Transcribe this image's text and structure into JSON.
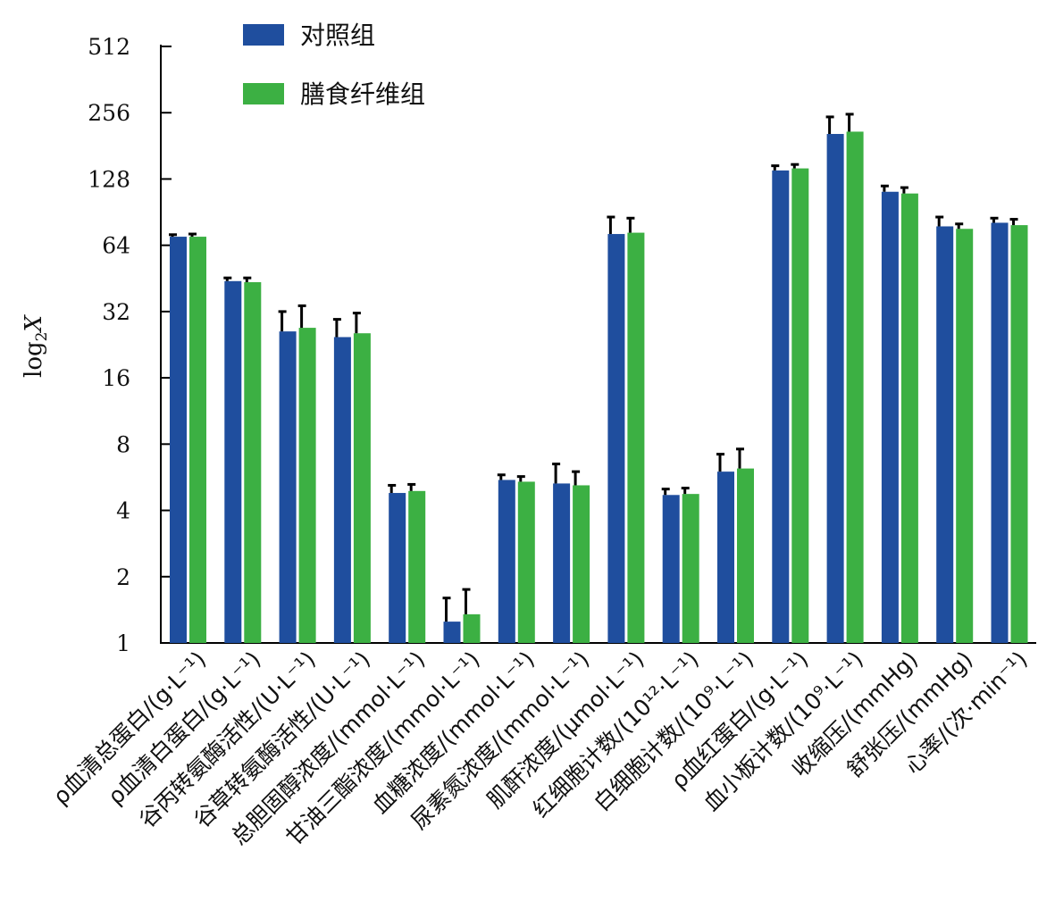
{
  "chart_data": {
    "type": "bar",
    "ylabel": "log",
    "ylabel_sub": "2",
    "ylabel_var": "X",
    "yscale": "log2",
    "ylim": [
      1,
      512
    ],
    "yticks": [
      1,
      2,
      4,
      8,
      16,
      32,
      64,
      128,
      256,
      512
    ],
    "grid": false,
    "legend_position": "top-left",
    "categories": [
      "ρ血清总蛋白/(g·L⁻¹)",
      "ρ血清白蛋白/(g·L⁻¹)",
      "谷丙转氨酶活性/(U·L⁻¹)",
      "谷草转氨酶活性/(U·L⁻¹)",
      "总胆固醇浓度/(mmol·L⁻¹)",
      "甘油三酯浓度/(mmol·L⁻¹)",
      "血糖浓度/(mmol·L⁻¹)",
      "尿素氮浓度/(mmol·L⁻¹)",
      "肌酐浓度/(μmol·L⁻¹)",
      "红细胞计数/(10¹²·L⁻¹)",
      "白细胞计数/(10⁹·L⁻¹)",
      "ρ血红蛋白/(g·L⁻¹)",
      "血小板计数/(10⁹·L⁻¹)",
      "收缩压/(mmHg)",
      "舒张压/(mmHg)",
      "心率/(次·min⁻¹)"
    ],
    "series": [
      {
        "name": "对照组",
        "color": "#1f4e9e",
        "values": [
          70,
          44,
          26,
          24.5,
          4.8,
          1.25,
          5.5,
          5.3,
          72,
          4.7,
          6.0,
          140,
          205,
          112,
          78,
          81
        ],
        "errors": [
          1.5,
          1.5,
          6,
          5,
          0.4,
          0.35,
          0.3,
          1.2,
          14,
          0.3,
          1.2,
          7,
          40,
          7,
          8,
          4
        ]
      },
      {
        "name": "膳食纤维组",
        "color": "#3cb043",
        "values": [
          70,
          43.5,
          27,
          25.5,
          4.9,
          1.35,
          5.4,
          5.2,
          73,
          4.75,
          6.2,
          143,
          210,
          110,
          76,
          79
        ],
        "errors": [
          2,
          2,
          7,
          6,
          0.35,
          0.4,
          0.3,
          0.8,
          12,
          0.3,
          1.4,
          6,
          42,
          7,
          4,
          5
        ]
      }
    ]
  }
}
